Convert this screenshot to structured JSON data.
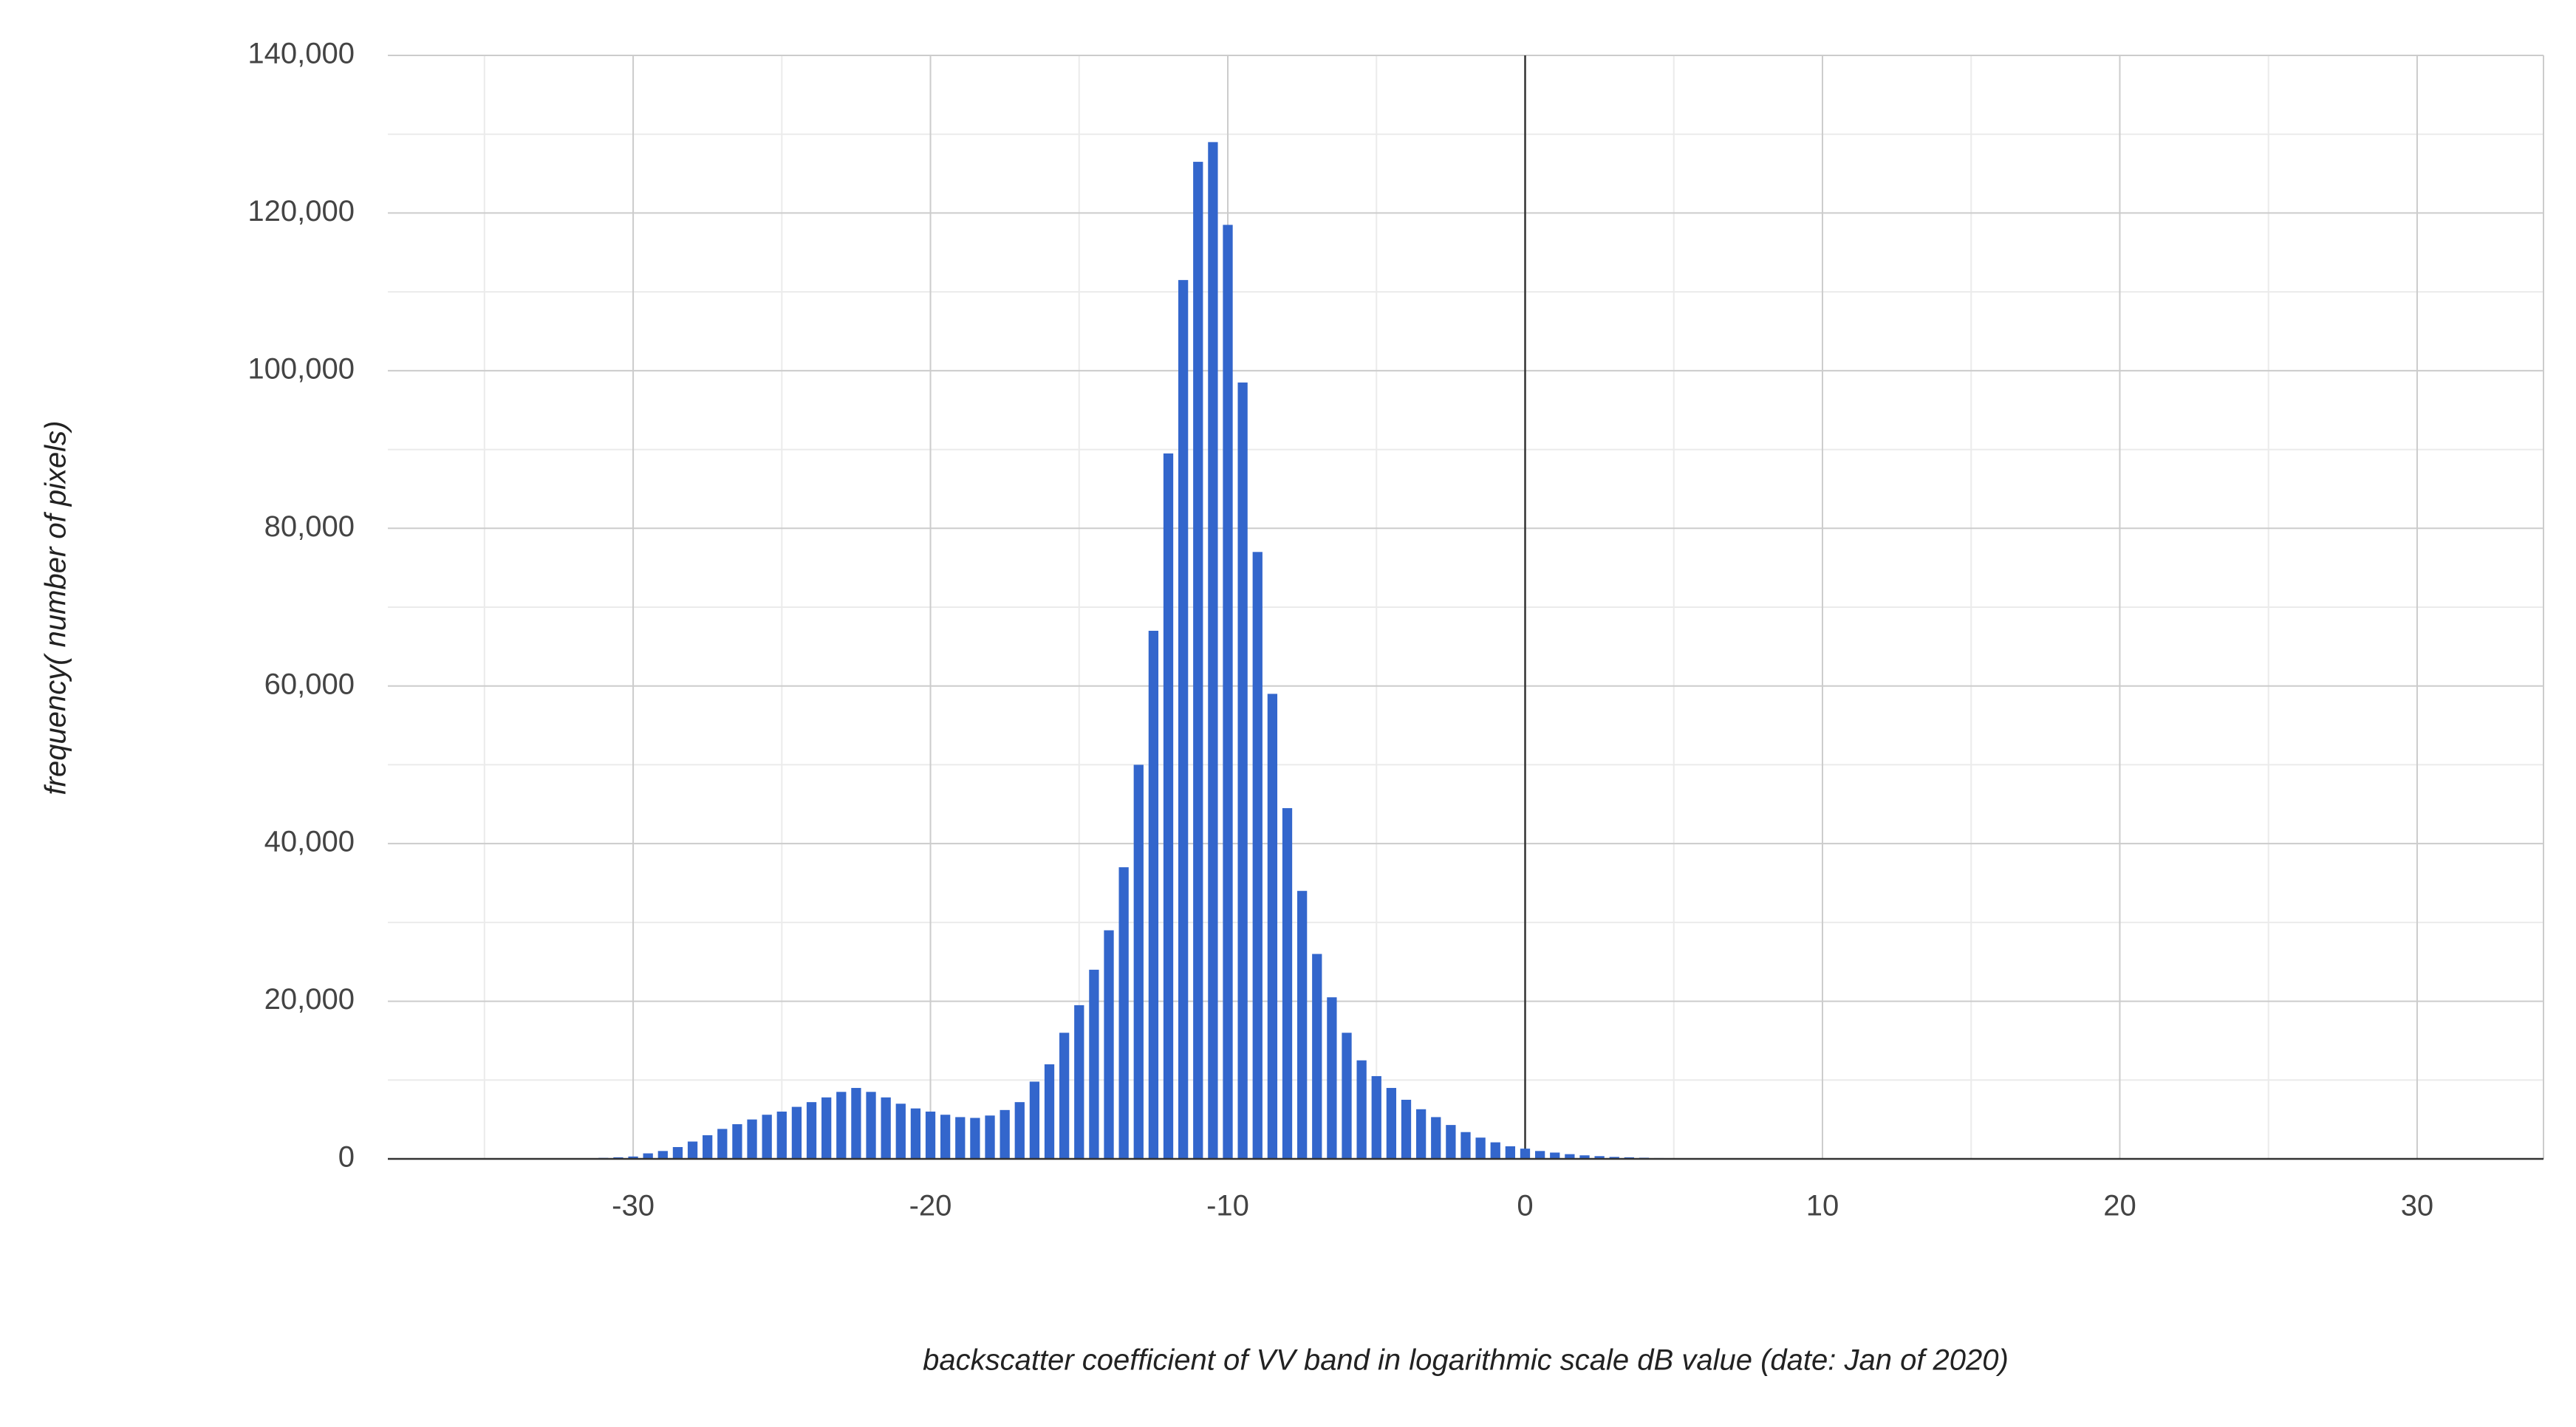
{
  "chart_data": {
    "type": "histogram",
    "x_label": "backscatter coefficient of VV band in logarithmic scale dB value (date: Jan of 2020)",
    "y_label": "frequency( number of pixels)",
    "color": "#3366cc",
    "bins": [
      -35.25,
      -34.75,
      -34.25,
      -33.75,
      -33.25,
      -32.75,
      -32.25,
      -31.75,
      -31.25,
      -30.75,
      -30.25,
      -29.75,
      -29.25,
      -28.75,
      -28.25,
      -27.75,
      -27.25,
      -26.75,
      -26.25,
      -25.75,
      -25.25,
      -24.75,
      -24.25,
      -23.75,
      -23.25,
      -22.75,
      -22.25,
      -21.75,
      -21.25,
      -20.75,
      -20.25,
      -19.75,
      -19.25,
      -18.75,
      -18.25,
      -17.75,
      -17.25,
      -16.75,
      -16.25,
      -15.75,
      -15.25,
      -14.75,
      -14.25,
      -13.75,
      -13.25,
      -12.75,
      -12.25,
      -11.75,
      -11.25,
      -10.75,
      -10.25,
      -9.75,
      -9.25,
      -8.75,
      -8.25,
      -7.75,
      -7.25,
      -6.75,
      -6.25,
      -5.75,
      -5.25,
      -4.75,
      -4.25,
      -3.75,
      -3.25,
      -2.75,
      -2.25,
      -1.75,
      -1.25,
      -0.75,
      -0.25,
      0.25,
      0.75,
      1.25,
      1.75,
      2.25,
      2.75,
      3.25,
      3.75,
      4.25,
      4.75,
      5.25,
      5.75,
      6.25,
      6.75,
      7.25,
      7.75,
      8.25,
      8.75,
      9.25,
      9.75,
      10.25,
      10.75,
      11.25,
      11.75,
      12.25,
      12.75,
      13.25,
      13.75,
      14.25,
      14.75,
      15.25,
      15.75,
      16.25,
      16.75,
      17.25,
      17.75,
      18.25,
      18.75,
      19.25,
      19.75,
      20.25,
      20.75,
      21.25,
      21.75,
      22.25,
      22.75,
      23.25,
      23.75,
      24.25,
      24.75,
      25.25,
      25.75,
      26.25,
      26.75,
      27.25,
      27.75,
      28.25,
      28.75,
      29.25,
      29.75,
      30.25,
      30.75,
      31.25,
      31.75
    ],
    "values": [
      10,
      15,
      20,
      30,
      40,
      50,
      70,
      90,
      130,
      200,
      300,
      700,
      1000,
      1500,
      2200,
      3000,
      3800,
      4400,
      5000,
      5600,
      6000,
      6600,
      7200,
      7800,
      8500,
      9000,
      8500,
      7800,
      7000,
      6400,
      6000,
      5600,
      5300,
      5200,
      5500,
      6200,
      7200,
      9800,
      12000,
      16000,
      19500,
      24000,
      29000,
      37000,
      50000,
      67000,
      89500,
      111500,
      126500,
      129000,
      118500,
      98500,
      77000,
      59000,
      44500,
      34000,
      26000,
      20500,
      16000,
      12500,
      10500,
      9000,
      7500,
      6300,
      5300,
      4300,
      3400,
      2700,
      2100,
      1600,
      1300,
      1000,
      800,
      600,
      450,
      350,
      250,
      200,
      150,
      100,
      80,
      60,
      50,
      45,
      40,
      35,
      30,
      28,
      25,
      22,
      20,
      18,
      16,
      15,
      14,
      13,
      12,
      11,
      10,
      10,
      10,
      9,
      9,
      8,
      8,
      8,
      7,
      7,
      7,
      6,
      6,
      6,
      5,
      5,
      5,
      5,
      4,
      4,
      4,
      4,
      3,
      3,
      3,
      3,
      3,
      2,
      2,
      2,
      2,
      2,
      1,
      1,
      1,
      1
    ],
    "xlim": [
      -38.25,
      34.25
    ],
    "xticks": [
      -30,
      -20,
      -10,
      0,
      10,
      20,
      30
    ],
    "ylim": [
      0,
      140000
    ],
    "yticks": [
      0,
      {
        "value": 20000,
        "label": "20,000"
      },
      {
        "value": 40000,
        "label": "40,000"
      },
      {
        "value": 60000,
        "label": "60,000"
      },
      {
        "value": 80000,
        "label": "80,000"
      },
      {
        "value": 100000,
        "label": "100,000"
      },
      {
        "value": 120000,
        "label": "120,000"
      },
      {
        "value": 140000,
        "label": "140,000"
      }
    ],
    "grid": true
  }
}
